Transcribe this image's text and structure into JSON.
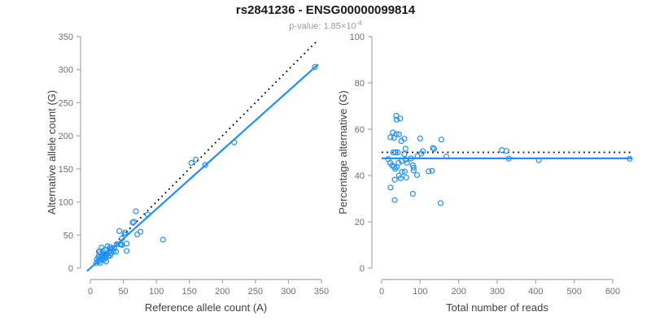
{
  "header": {
    "title": "rs2841236 - ENSG00000099814",
    "p_value_prefix": "p-value: 1.85×10",
    "p_value_exponent": "-4"
  },
  "colors": {
    "accent": "#1e90ff",
    "identity_line": "#000000",
    "axis_line": "#a6a6a6",
    "tick_label": "#6e6e6e",
    "axis_title": "#404040",
    "title": "#1a1a1a",
    "subtitle": "#9a9a9a",
    "background": "#ffffff"
  },
  "chart_data": [
    {
      "type": "scatter",
      "name": "allele-counts",
      "xlabel": "Reference allele count (A)",
      "ylabel": "Alternative allele count (G)",
      "xlim": [
        0,
        350
      ],
      "ylim": [
        0,
        350
      ],
      "xticks": [
        0,
        50,
        100,
        150,
        200,
        250,
        300,
        350
      ],
      "yticks": [
        0,
        50,
        100,
        150,
        200,
        250,
        300,
        350
      ],
      "grid": false,
      "legend": null,
      "marker": "open-circle",
      "points": [
        [
          9,
          8
        ],
        [
          10,
          13
        ],
        [
          12,
          10
        ],
        [
          12,
          17
        ],
        [
          13,
          25
        ],
        [
          14,
          18
        ],
        [
          14,
          25
        ],
        [
          15,
          8
        ],
        [
          15,
          12
        ],
        [
          15,
          15
        ],
        [
          16,
          22
        ],
        [
          17,
          31
        ],
        [
          18,
          14
        ],
        [
          18,
          18
        ],
        [
          19,
          26
        ],
        [
          20,
          15
        ],
        [
          21,
          13
        ],
        [
          21,
          21
        ],
        [
          22,
          17
        ],
        [
          23,
          28
        ],
        [
          24,
          10
        ],
        [
          24,
          20
        ],
        [
          26,
          33
        ],
        [
          27,
          18
        ],
        [
          28,
          24
        ],
        [
          30,
          19
        ],
        [
          30,
          29
        ],
        [
          30,
          32
        ],
        [
          31,
          22
        ],
        [
          33,
          29
        ],
        [
          35,
          25
        ],
        [
          36,
          30
        ],
        [
          39,
          25
        ],
        [
          40,
          36
        ],
        [
          44,
          56
        ],
        [
          45,
          36
        ],
        [
          47,
          36
        ],
        [
          48,
          35
        ],
        [
          48,
          45
        ],
        [
          52,
          51
        ],
        [
          53,
          54
        ],
        [
          55,
          26
        ],
        [
          55,
          37
        ],
        [
          64,
          69
        ],
        [
          66,
          70
        ],
        [
          69,
          86
        ],
        [
          71,
          51
        ],
        [
          76,
          55
        ],
        [
          87,
          81
        ],
        [
          110,
          43
        ],
        [
          153,
          159
        ],
        [
          160,
          164
        ],
        [
          174,
          156
        ],
        [
          218,
          190
        ],
        [
          340,
          304
        ]
      ],
      "lines": [
        {
          "name": "identity-line",
          "style": "dotted",
          "color": "#000000",
          "x1": 0,
          "y1": 0,
          "x2": 345,
          "y2": 345
        },
        {
          "name": "fit-line",
          "style": "solid",
          "color": "#1e90ff",
          "x1": -5,
          "y1": -4.5,
          "x2": 345,
          "y2": 308
        }
      ]
    },
    {
      "type": "scatter",
      "name": "percentage-vs-reads",
      "xlabel": "Total number of reads",
      "ylabel": "Percentage alternative (G)",
      "xlim": [
        0,
        600
      ],
      "ylim": [
        0,
        100
      ],
      "xticks": [
        0,
        100,
        200,
        300,
        400,
        500,
        600
      ],
      "yticks": [
        0,
        20,
        40,
        60,
        80,
        100
      ],
      "grid": false,
      "legend": null,
      "marker": "open-circle",
      "points": [
        [
          17,
          47.1
        ],
        [
          23,
          56.5
        ],
        [
          22,
          45.5
        ],
        [
          29,
          58.6
        ],
        [
          38,
          65.8
        ],
        [
          32,
          56.3
        ],
        [
          39,
          64.1
        ],
        [
          23,
          34.8
        ],
        [
          27,
          44.4
        ],
        [
          30,
          50.0
        ],
        [
          38,
          57.9
        ],
        [
          48,
          64.6
        ],
        [
          32,
          43.8
        ],
        [
          36,
          50.0
        ],
        [
          45,
          57.8
        ],
        [
          35,
          42.9
        ],
        [
          34,
          38.2
        ],
        [
          42,
          50.0
        ],
        [
          39,
          43.6
        ],
        [
          51,
          54.9
        ],
        [
          34,
          29.4
        ],
        [
          44,
          45.5
        ],
        [
          59,
          55.9
        ],
        [
          45,
          40.0
        ],
        [
          52,
          46.2
        ],
        [
          49,
          38.8
        ],
        [
          59,
          49.2
        ],
        [
          62,
          51.6
        ],
        [
          53,
          41.5
        ],
        [
          62,
          46.8
        ],
        [
          60,
          41.7
        ],
        [
          66,
          45.5
        ],
        [
          64,
          39.1
        ],
        [
          76,
          47.4
        ],
        [
          100,
          56.0
        ],
        [
          81,
          44.4
        ],
        [
          83,
          43.4
        ],
        [
          83,
          42.2
        ],
        [
          93,
          48.4
        ],
        [
          103,
          49.5
        ],
        [
          107,
          50.5
        ],
        [
          81,
          32.1
        ],
        [
          92,
          40.2
        ],
        [
          133,
          51.9
        ],
        [
          136,
          51.5
        ],
        [
          155,
          55.5
        ],
        [
          122,
          41.8
        ],
        [
          131,
          42.0
        ],
        [
          168,
          48.2
        ],
        [
          153,
          28.1
        ],
        [
          312,
          51.0
        ],
        [
          324,
          50.6
        ],
        [
          330,
          47.3
        ],
        [
          408,
          46.6
        ],
        [
          644,
          47.2
        ]
      ],
      "lines": [
        {
          "name": "null-line",
          "style": "dotted",
          "color": "#000000",
          "x1": 0,
          "y1": 50,
          "x2": 648,
          "y2": 50
        },
        {
          "name": "fit-line",
          "style": "solid",
          "color": "#1e90ff",
          "x1": 0,
          "y1": 47.4,
          "x2": 650,
          "y2": 47.4
        }
      ]
    }
  ]
}
